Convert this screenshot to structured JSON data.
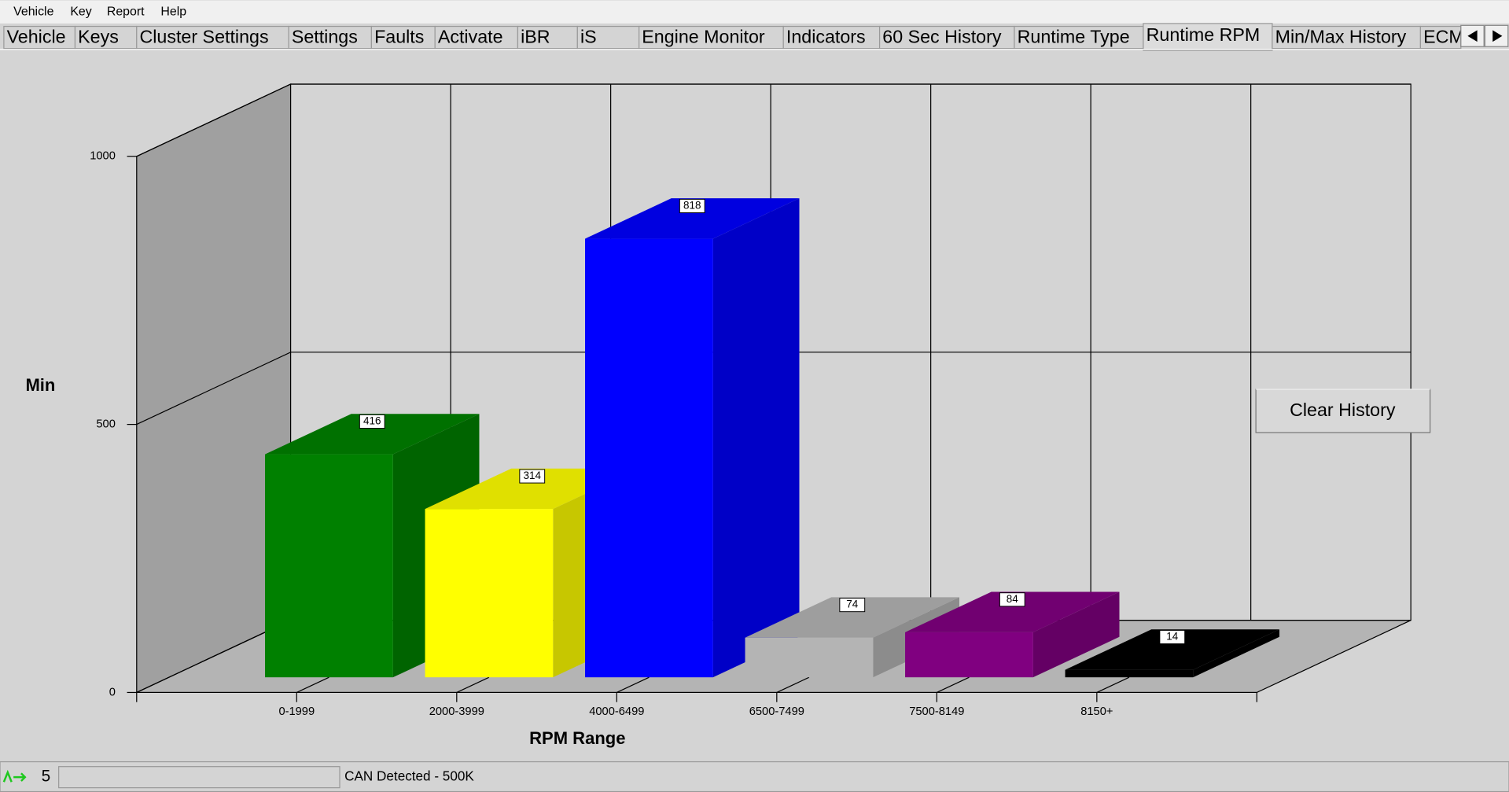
{
  "menu": [
    "Vehicle",
    "Key",
    "Report",
    "Help"
  ],
  "tabs": [
    "Vehicle",
    "Keys",
    "Cluster Settings",
    "Settings",
    "Faults",
    "Activate",
    "iBR",
    "iS",
    "Engine Monitor",
    "Indicators",
    "60 Sec History",
    "Runtime Type",
    "Runtime RPM",
    "Min/Max History",
    "ECM"
  ],
  "chart_data": {
    "type": "bar",
    "categories": [
      "0-1999",
      "2000-3999",
      "4000-6499",
      "6500-7499",
      "7500-8149",
      "8150+"
    ],
    "values": [
      416,
      314,
      818,
      74,
      84,
      14
    ],
    "colors": [
      "#008000",
      "#ffff00",
      "#0000ff",
      "#b4b4b4",
      "#800080",
      "#000000"
    ],
    "ylabel": "Min",
    "xlabel": "RPM Range",
    "ylim": [
      0,
      1000
    ],
    "yticks": [
      0,
      500,
      1000
    ],
    "grid": true
  },
  "button": "Clear History",
  "status": {
    "count": "5",
    "message": "CAN Detected - 500K"
  }
}
